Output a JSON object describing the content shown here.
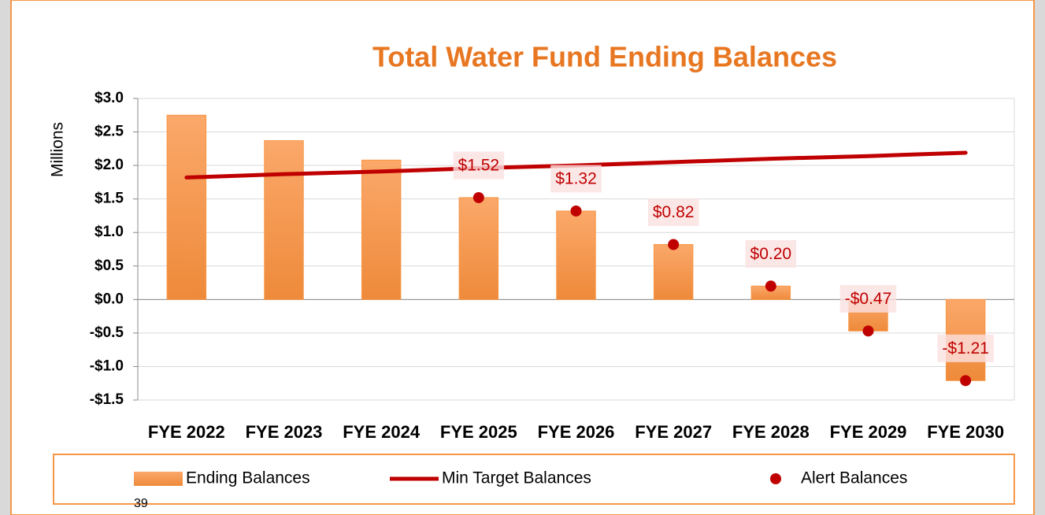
{
  "chart_data": {
    "type": "bar",
    "title": "Total Water Fund Ending Balances",
    "y_label": "Millions",
    "categories": [
      "FYE 2022",
      "FYE 2023",
      "FYE 2024",
      "FYE 2025",
      "FYE 2026",
      "FYE 2027",
      "FYE 2028",
      "FYE 2029",
      "FYE 2030"
    ],
    "series": [
      {
        "name": "Ending Balances",
        "type": "bar",
        "color": "#f79646",
        "values": [
          2.75,
          2.37,
          2.08,
          1.52,
          1.32,
          0.82,
          0.2,
          -0.47,
          -1.21
        ]
      },
      {
        "name": "Min Target Balances",
        "type": "line",
        "color": "#c00000",
        "values": [
          1.82,
          1.87,
          1.91,
          1.96,
          2.0,
          2.05,
          2.1,
          2.14,
          2.19
        ]
      },
      {
        "name": "Alert Balances",
        "type": "scatter",
        "color": "#c00000",
        "values": [
          null,
          null,
          null,
          1.52,
          1.32,
          0.82,
          0.2,
          -0.47,
          -1.21
        ],
        "value_labels": [
          null,
          null,
          null,
          "$1.52",
          "$1.32",
          "$0.82",
          "$0.20",
          "-$0.47",
          "-$1.21"
        ]
      }
    ],
    "ylim": [
      -1.5,
      3.0
    ],
    "yticks": [
      {
        "value": -1.5,
        "label": "-$1.5"
      },
      {
        "value": -1.0,
        "label": "-$1.0"
      },
      {
        "value": -0.5,
        "label": "-$0.5"
      },
      {
        "value": 0,
        "label": "$0.0"
      },
      {
        "value": 0.5,
        "label": "$0.5"
      },
      {
        "value": 1.0,
        "label": "$1.0"
      },
      {
        "value": 1.5,
        "label": "$1.5"
      },
      {
        "value": 2.0,
        "label": "$2.0"
      },
      {
        "value": 2.5,
        "label": "$2.5"
      },
      {
        "value": 3.0,
        "label": "$3.0"
      }
    ],
    "grid": true,
    "legend": "bottom"
  },
  "page_number": "39"
}
